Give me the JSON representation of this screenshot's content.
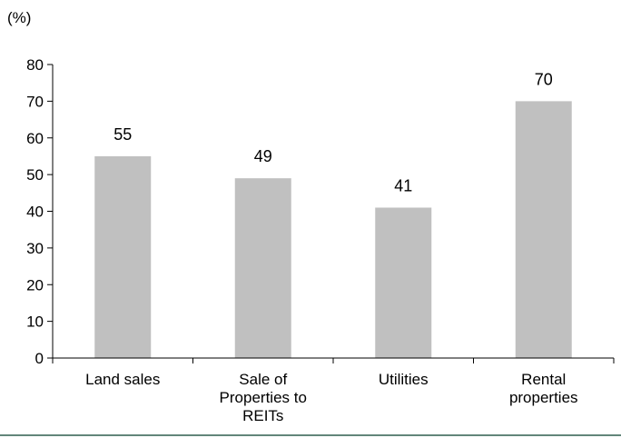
{
  "chart_data": {
    "type": "bar",
    "unit_label": "(%)",
    "categories": [
      [
        "Land sales"
      ],
      [
        "Sale of",
        "Properties to",
        "REITs"
      ],
      [
        "Utilities"
      ],
      [
        "Rental",
        "properties"
      ]
    ],
    "values": [
      55,
      49,
      41,
      70
    ],
    "data_labels": [
      "55",
      "49",
      "41",
      "70"
    ],
    "ylim": [
      0,
      80
    ],
    "yticks": [
      "0",
      "10",
      "20",
      "30",
      "40",
      "50",
      "60",
      "70",
      "80"
    ],
    "grid": false,
    "legend": "none",
    "colors": {
      "bar": "#c0c0c0",
      "axis": "#000000",
      "baseline_rule": "#2e5e4e"
    }
  }
}
